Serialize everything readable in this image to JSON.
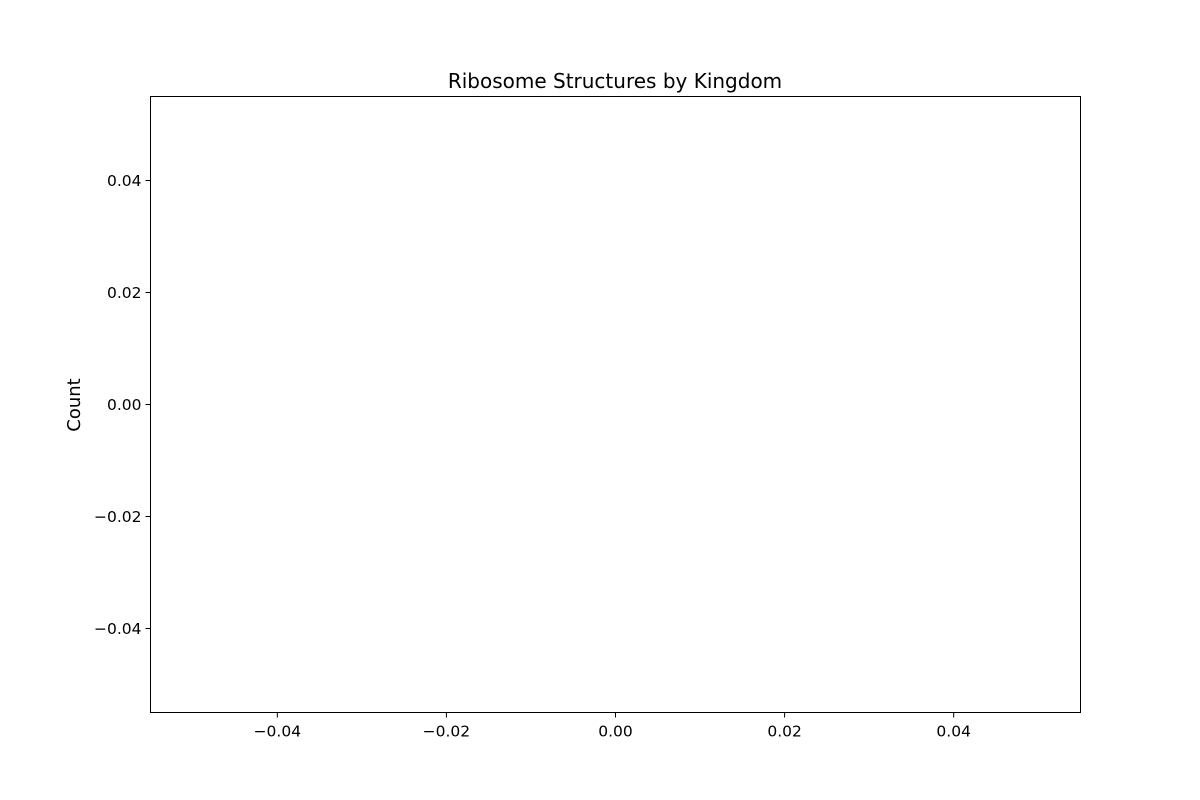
{
  "chart_data": {
    "type": "bar",
    "title": "Ribosome Structures by Kingdom",
    "xlabel": "",
    "ylabel": "Count",
    "categories": [],
    "values": [],
    "xlim": [
      -0.055,
      0.055
    ],
    "ylim": [
      -0.055,
      0.055
    ],
    "xticks": [
      {
        "value": -0.04,
        "label": "−0.04"
      },
      {
        "value": -0.02,
        "label": "−0.02"
      },
      {
        "value": 0.0,
        "label": "0.00"
      },
      {
        "value": 0.02,
        "label": "0.02"
      },
      {
        "value": 0.04,
        "label": "0.04"
      }
    ],
    "yticks": [
      {
        "value": 0.04,
        "label": "0.04"
      },
      {
        "value": 0.02,
        "label": "0.02"
      },
      {
        "value": 0.0,
        "label": "0.00"
      },
      {
        "value": -0.02,
        "label": "−0.02"
      },
      {
        "value": -0.04,
        "label": "−0.04"
      }
    ],
    "grid": false,
    "legend": "none"
  }
}
